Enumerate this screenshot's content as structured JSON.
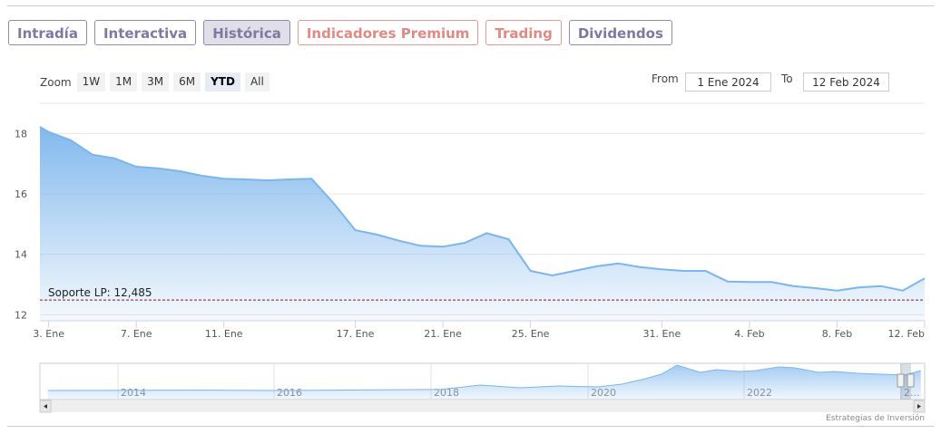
{
  "tabs": [
    {
      "label": "Intradía",
      "kind": "normal"
    },
    {
      "label": "Interactiva",
      "kind": "normal"
    },
    {
      "label": "Histórica",
      "kind": "active"
    },
    {
      "label": "Indicadores Premium",
      "kind": "premium"
    },
    {
      "label": "Trading",
      "kind": "premium"
    },
    {
      "label": "Dividendos",
      "kind": "normal"
    }
  ],
  "zoom": {
    "label": "Zoom",
    "buttons": [
      "1W",
      "1M",
      "3M",
      "6M",
      "YTD",
      "All"
    ],
    "active": "YTD"
  },
  "range": {
    "from_label": "From",
    "from_value": "1 Ene 2024",
    "to_label": "To",
    "to_value": "12 Feb 2024"
  },
  "colors": {
    "series_line": "#7cb5ec",
    "support_line": "#8b1a1a",
    "grid": "#e6e6e6"
  },
  "chart_data": {
    "type": "area",
    "ylim": [
      11.8,
      19.0
    ],
    "yticks": [
      12,
      14,
      16,
      18
    ],
    "xlim": [
      2.6,
      43.0
    ],
    "xticks": [
      {
        "label": "3. Ene",
        "x": 3
      },
      {
        "label": "7. Ene",
        "x": 7
      },
      {
        "label": "11. Ene",
        "x": 11
      },
      {
        "label": "17. Ene",
        "x": 17
      },
      {
        "label": "21. Ene",
        "x": 21
      },
      {
        "label": "25. Ene",
        "x": 25
      },
      {
        "label": "31. Ene",
        "x": 31
      },
      {
        "label": "4. Feb",
        "x": 35
      },
      {
        "label": "8. Feb",
        "x": 39
      },
      {
        "label": "12. Feb",
        "x": 43
      }
    ],
    "x": [
      2.6,
      3,
      4,
      5,
      6,
      7,
      8,
      9,
      10,
      11,
      12,
      13,
      14,
      15,
      16,
      17,
      18,
      19,
      20,
      21,
      22,
      23,
      24,
      25,
      26,
      27,
      28,
      29,
      30,
      31,
      32,
      33,
      34,
      35,
      36,
      37,
      38,
      39,
      40,
      41,
      42,
      43
    ],
    "values": [
      18.22,
      18.05,
      17.78,
      17.3,
      17.18,
      16.9,
      16.85,
      16.75,
      16.6,
      16.5,
      16.48,
      16.45,
      16.48,
      16.5,
      15.7,
      14.8,
      14.65,
      14.45,
      14.28,
      14.25,
      14.38,
      14.7,
      14.5,
      13.45,
      13.3,
      13.45,
      13.6,
      13.7,
      13.58,
      13.5,
      13.45,
      13.45,
      13.1,
      13.08,
      13.08,
      12.95,
      12.88,
      12.8,
      12.9,
      12.95,
      12.8,
      13.2
    ],
    "support": {
      "label": "Soporte LP: 12,485",
      "value": 12.485
    },
    "navigator": {
      "years": [
        "2014",
        "2016",
        "2018",
        "2020",
        "2022",
        "2..."
      ],
      "x": [
        2013.0,
        2014,
        2015,
        2016,
        2017,
        2018,
        2018.5,
        2019,
        2019.5,
        2020,
        2020.3,
        2020.6,
        2020.8,
        2021.0,
        2021.3,
        2021.5,
        2021.8,
        2022.0,
        2022.3,
        2022.5,
        2022.8,
        2023.0,
        2023.3,
        2023.6,
        2023.9,
        2024.1
      ],
      "values": [
        5.0,
        5.1,
        5.2,
        5.0,
        5.3,
        5.6,
        8.0,
        6.5,
        7.5,
        7.0,
        8.5,
        11.5,
        14.0,
        19.0,
        15.0,
        16.5,
        15.5,
        16.0,
        18.0,
        17.5,
        15.0,
        15.5,
        14.5,
        14.0,
        13.5,
        16.0
      ],
      "xlim": [
        2012.9,
        2024.15
      ],
      "ylim": [
        0,
        20
      ]
    }
  },
  "credit": "Estrategias de Inversión"
}
